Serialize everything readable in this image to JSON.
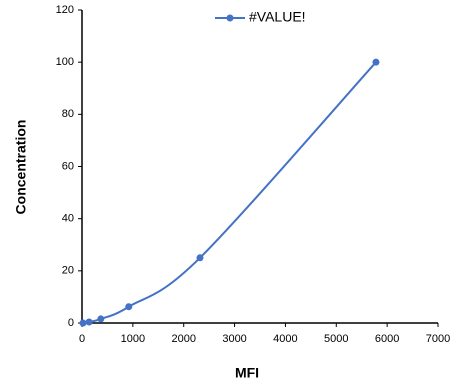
{
  "chart_data": {
    "type": "line",
    "x_label": "MFI",
    "y_label": "Concentration",
    "x": [
      20,
      140,
      370,
      920,
      2320,
      5780
    ],
    "series": [
      {
        "name": "#VALUE!",
        "color": "#4472c4",
        "values": [
          0,
          0.39,
          1.56,
          6.25,
          25,
          100
        ]
      }
    ],
    "xlim": [
      0,
      7000
    ],
    "xticks": [
      0,
      1000,
      2000,
      3000,
      4000,
      5000,
      6000,
      7000
    ],
    "ylim": [
      0,
      120
    ],
    "yticks": [
      0,
      20,
      40,
      60,
      80,
      100,
      120
    ],
    "legend": "top",
    "grid": false
  }
}
